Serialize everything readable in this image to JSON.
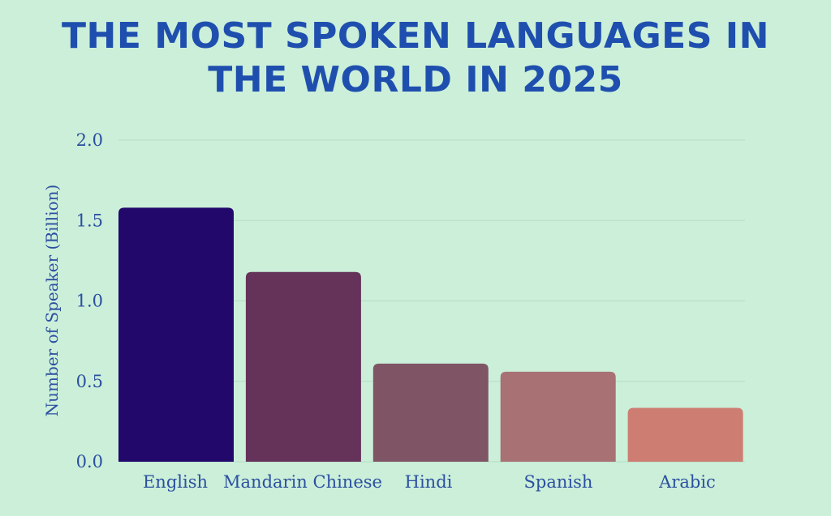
{
  "chart_data": {
    "type": "bar",
    "title": "THE MOST SPOKEN LANGUAGES IN THE WORLD IN 2025",
    "xlabel": "",
    "ylabel": "Number of Speaker (Billion)",
    "categories": [
      "English",
      "Mandarin Chinese",
      "Hindi",
      "Spanish",
      "Arabic"
    ],
    "values": [
      1.58,
      1.18,
      0.61,
      0.56,
      0.335
    ],
    "ylim": [
      0,
      2.0
    ],
    "yticks": [
      "0.0",
      "0.5",
      "1.0",
      "1.5",
      "2.0"
    ],
    "ytick_values": [
      0,
      0.5,
      1.0,
      1.5,
      2.0
    ],
    "colors": [
      "#22086a",
      "#65325a",
      "#7f5566",
      "#a87174",
      "#cd7d72"
    ],
    "grid": true
  },
  "style": {
    "background": "#cbefd9",
    "title_color": "#1f4fae",
    "label_color": "#2c4fa0",
    "gridline_color": "#b7ddc8"
  }
}
